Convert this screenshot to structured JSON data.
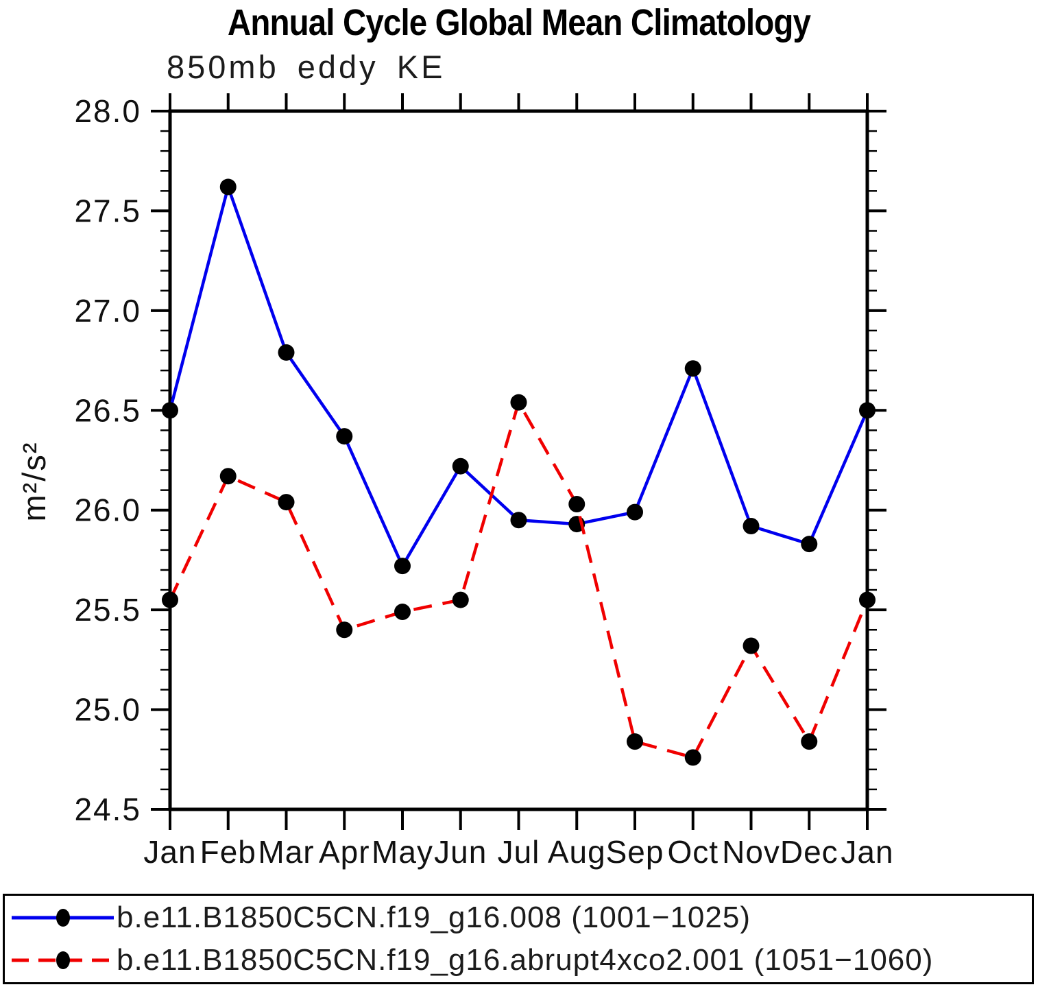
{
  "chart_data": {
    "type": "line",
    "title": "Annual Cycle Global Mean Climatology",
    "subtitle": "850mb eddy KE",
    "ylabel": "m²/s²",
    "xlabel": "",
    "categories": [
      "Jan",
      "Feb",
      "Mar",
      "Apr",
      "May",
      "Jun",
      "Jul",
      "Aug",
      "Sep",
      "Oct",
      "Nov",
      "Dec",
      "Jan"
    ],
    "series": [
      {
        "name": "b.e11.B1850C5CN.f19_g16.008 (1001−1025)",
        "values": [
          26.5,
          27.62,
          26.79,
          26.37,
          25.72,
          26.22,
          25.95,
          25.93,
          25.99,
          26.71,
          25.92,
          25.83,
          26.5
        ],
        "color": "#0000ee",
        "line_style": "solid",
        "marker": "circle",
        "marker_color": "#000000"
      },
      {
        "name": "b.e11.B1850C5CN.f19_g16.abrupt4xco2.001 (1051−1060)",
        "values": [
          25.55,
          26.17,
          26.04,
          25.4,
          25.49,
          25.55,
          26.54,
          26.03,
          24.84,
          24.76,
          25.32,
          24.84,
          25.55
        ],
        "color": "#f00000",
        "line_style": "dashed",
        "marker": "circle",
        "marker_color": "#000000"
      }
    ],
    "ylim": [
      24.5,
      28.0
    ],
    "y_major_step": 0.5,
    "y_minor_step": 0.1,
    "y_tick_labels": [
      "28.0",
      "27.5",
      "27.0",
      "26.5",
      "26.0",
      "25.5",
      "25.0",
      "24.5"
    ],
    "grid": false,
    "frame": "box",
    "legend_position": "bottom"
  }
}
